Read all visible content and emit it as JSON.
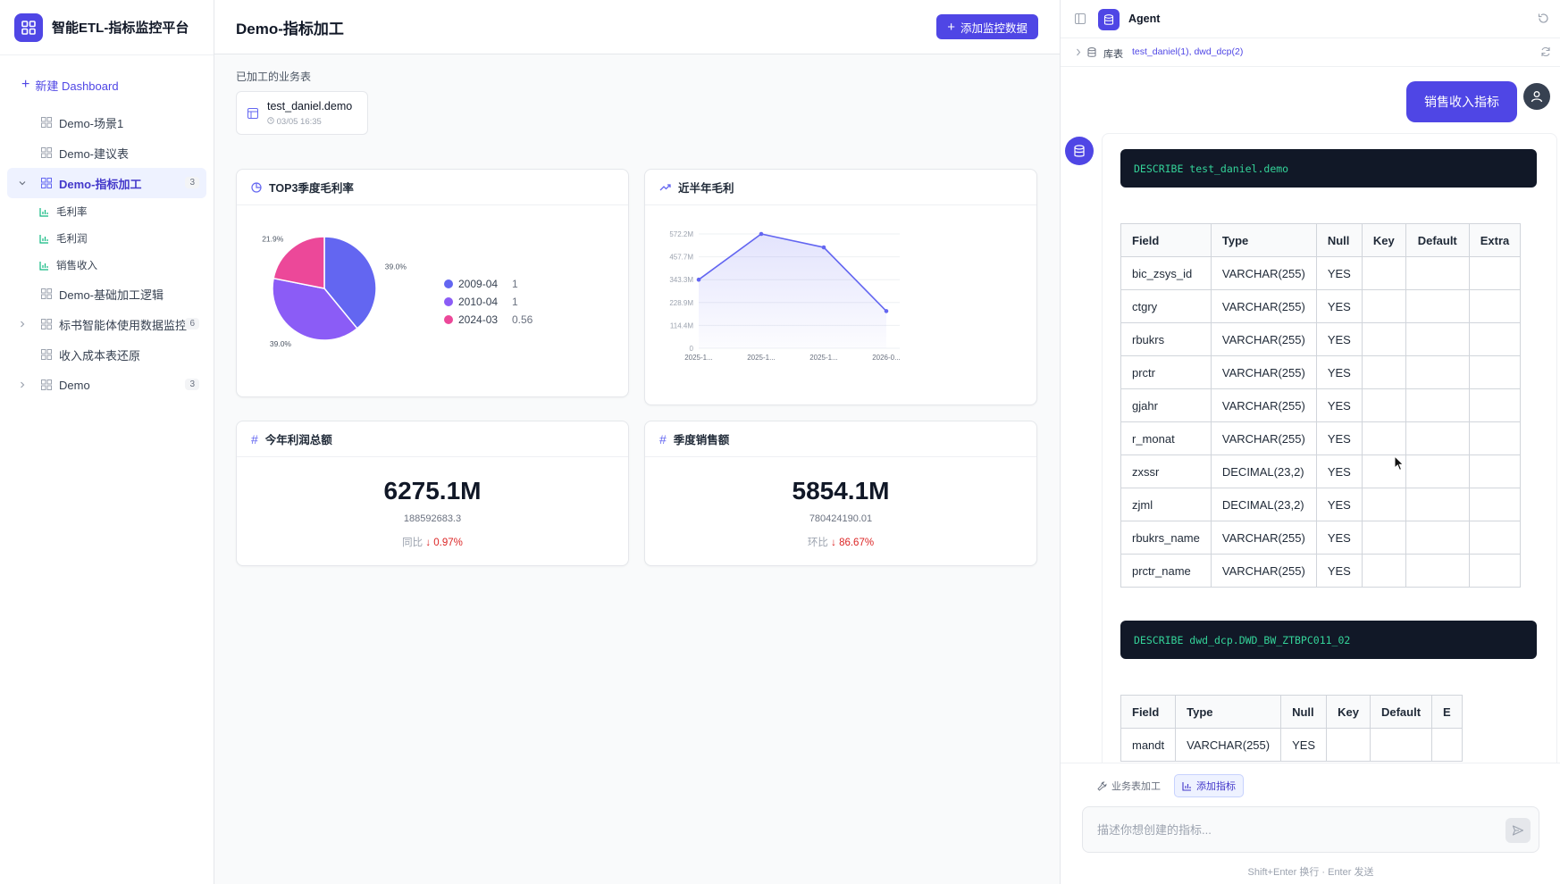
{
  "app": {
    "title": "智能ETL-指标监控平台"
  },
  "sidebar": {
    "new_dashboard": "新建 Dashboard",
    "items": [
      {
        "label": "Demo-场景1"
      },
      {
        "label": "Demo-建议表"
      },
      {
        "label": "Demo-指标加工",
        "badge": "3",
        "active": true,
        "children": [
          {
            "label": "毛利率"
          },
          {
            "label": "毛利润"
          },
          {
            "label": "销售收入"
          }
        ]
      },
      {
        "label": "Demo-基础加工逻辑"
      },
      {
        "label": "标书智能体使用数据监控",
        "badge": "6"
      },
      {
        "label": "收入成本表还原"
      },
      {
        "label": "Demo",
        "badge": "3"
      }
    ]
  },
  "main": {
    "title": "Demo-指标加工",
    "add_button": "添加监控数据",
    "processed_label": "已加工的业务表",
    "table_card": {
      "name": "test_daniel.demo",
      "time": "03/05 16:35"
    },
    "cards": {
      "pie_title": "TOP3季度毛利率",
      "line_title": "近半年毛利",
      "kpi1": {
        "title": "今年利润总额",
        "value": "6275.1M",
        "sub": "188592683.3",
        "change_label": "同比",
        "change": "↓ 0.97%"
      },
      "kpi2": {
        "title": "季度销售额",
        "value": "5854.1M",
        "sub": "780424190.01",
        "change_label": "环比",
        "change": "↓ 86.67%"
      }
    }
  },
  "chart_data": [
    {
      "type": "pie",
      "title": "TOP3季度毛利率",
      "categories": [
        "2009-04",
        "2010-04",
        "2024-03"
      ],
      "values": [
        1,
        1,
        0.56
      ],
      "percent_labels": [
        "39.0%",
        "39.0%",
        "21.9%"
      ],
      "colors": [
        "#6366f1",
        "#8b5cf6",
        "#ec4899"
      ],
      "legend": "right"
    },
    {
      "type": "area",
      "title": "近半年毛利",
      "x": [
        "2025-1...",
        "2025-1...",
        "2025-1...",
        "2026-0..."
      ],
      "y_ticks": [
        "572.2M",
        "457.7M",
        "343.3M",
        "228.9M",
        "114.4M",
        "0"
      ],
      "series": [
        {
          "values": [
            343.3,
            572.2,
            505,
            186
          ]
        }
      ],
      "ylim": [
        0,
        572.2
      ],
      "grid": true,
      "color": "#6366f1"
    }
  ],
  "agent": {
    "title": "Agent",
    "lib_label": "库表",
    "lib_value": "test_daniel(1), dwd_dcp(2)",
    "user_message": "销售收入指标",
    "sql1": "DESCRIBE test_daniel.demo",
    "sql2": "DESCRIBE dwd_dcp.DWD_BW_ZTBPC011_02",
    "columns": [
      "Field",
      "Type",
      "Null",
      "Key",
      "Default",
      "Extra"
    ],
    "rows1": [
      [
        "bic_zsys_id",
        "VARCHAR(255)",
        "YES",
        "",
        "",
        ""
      ],
      [
        "ctgry",
        "VARCHAR(255)",
        "YES",
        "",
        "",
        ""
      ],
      [
        "rbukrs",
        "VARCHAR(255)",
        "YES",
        "",
        "",
        ""
      ],
      [
        "prctr",
        "VARCHAR(255)",
        "YES",
        "",
        "",
        ""
      ],
      [
        "gjahr",
        "VARCHAR(255)",
        "YES",
        "",
        "",
        ""
      ],
      [
        "r_monat",
        "VARCHAR(255)",
        "YES",
        "",
        "",
        ""
      ],
      [
        "zxssr",
        "DECIMAL(23,2)",
        "YES",
        "",
        "",
        ""
      ],
      [
        "zjml",
        "DECIMAL(23,2)",
        "YES",
        "",
        "",
        ""
      ],
      [
        "rbukrs_name",
        "VARCHAR(255)",
        "YES",
        "",
        "",
        ""
      ],
      [
        "prctr_name",
        "VARCHAR(255)",
        "YES",
        "",
        "",
        ""
      ]
    ],
    "columns2": [
      "Field",
      "Type",
      "Null",
      "Key",
      "Default",
      "E"
    ],
    "rows2": [
      [
        "mandt",
        "VARCHAR(255)",
        "YES",
        "",
        "",
        ""
      ]
    ],
    "chip1": "业务表加工",
    "chip2": "添加指标",
    "placeholder": "描述你想创建的指标...",
    "hint": "Shift+Enter 换行 · Enter 发送"
  }
}
